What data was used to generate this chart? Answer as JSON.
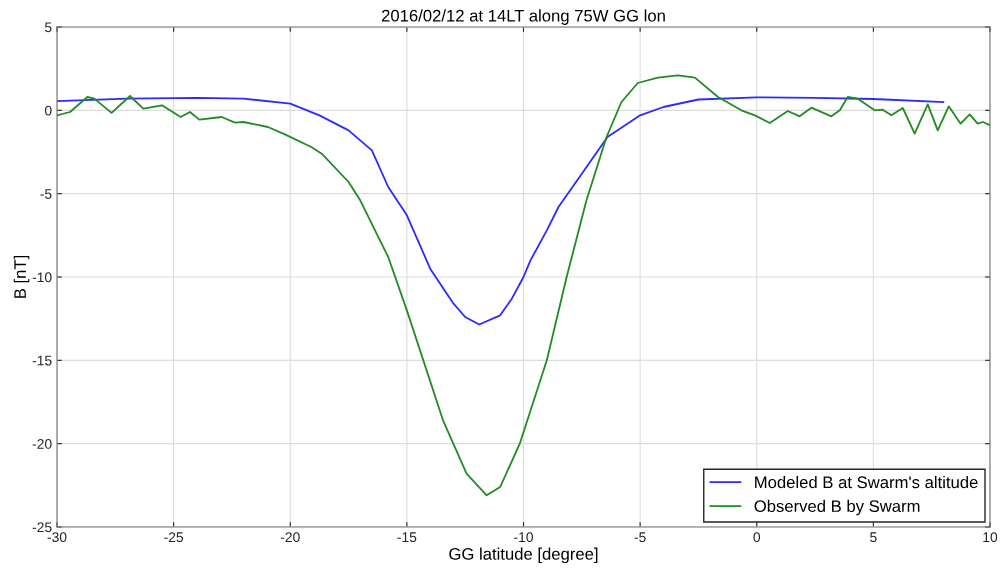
{
  "chart_data": {
    "type": "line",
    "title": "2016/02/12 at 14LT along 75W GG lon",
    "xlabel": "GG latitude [degree]",
    "ylabel": "B [nT]",
    "xlim": [
      -30,
      10
    ],
    "xticks": [
      -30,
      -25,
      -20,
      -15,
      -10,
      -5,
      0,
      5,
      10
    ],
    "ylim": [
      -25,
      5
    ],
    "yticks": [
      -25,
      -20,
      -15,
      -10,
      -5,
      0,
      5
    ],
    "grid": true,
    "legend": "bottom right",
    "line_style": "solid",
    "marker": "none",
    "series": [
      {
        "name": "Modeled B at Swarm's altitude",
        "color": "#2b2bff",
        "x": [
          -30,
          -27,
          -24,
          -22,
          -20,
          -18.75,
          -17.5,
          -16.5,
          -15.8,
          -15,
          -14,
          -13,
          -12.5,
          -11.9,
          -11,
          -10.5,
          -10,
          -9.7,
          -9,
          -8.5,
          -7.5,
          -6.4,
          -5,
          -4,
          -2.5,
          0,
          2.5,
          5,
          8
        ],
        "values": [
          0.55,
          0.7,
          0.75,
          0.7,
          0.4,
          -0.3,
          -1.2,
          -2.4,
          -4.6,
          -6.3,
          -9.5,
          -11.6,
          -12.4,
          -12.85,
          -12.3,
          -11.3,
          -10,
          -9,
          -7.2,
          -5.8,
          -3.8,
          -1.6,
          -0.3,
          0.2,
          0.65,
          0.78,
          0.75,
          0.68,
          0.5
        ]
      },
      {
        "name": "Observed B by Swarm",
        "color": "#228b22",
        "x": [
          -30,
          -29.44,
          -28.7,
          -28.4,
          -27.66,
          -26.87,
          -26.3,
          -25.5,
          -24.7,
          -24.3,
          -23.9,
          -22.94,
          -22.37,
          -22,
          -20.96,
          -20.23,
          -19.1,
          -18.65,
          -17.5,
          -17.0,
          -15.8,
          -15.0,
          -13.45,
          -12.44,
          -11.58,
          -11.0,
          -10.16,
          -9.0,
          -8.15,
          -7.3,
          -6.44,
          -5.8,
          -5.1,
          -4.24,
          -3.38,
          -2.65,
          -1.66,
          -0.66,
          -0.08,
          0.56,
          1.33,
          1.84,
          2.34,
          3.2,
          3.56,
          3.9,
          4.33,
          5.06,
          5.4,
          5.77,
          6.26,
          6.77,
          7.33,
          7.76,
          8.23,
          8.74,
          9.13,
          9.47,
          9.7,
          10
        ],
        "values": [
          -0.3,
          -0.1,
          0.8,
          0.7,
          -0.15,
          0.86,
          0.1,
          0.3,
          -0.4,
          -0.1,
          -0.56,
          -0.4,
          -0.74,
          -0.7,
          -1.0,
          -1.44,
          -2.2,
          -2.6,
          -4.3,
          -5.4,
          -8.8,
          -12.0,
          -18.6,
          -21.8,
          -23.1,
          -22.6,
          -20.0,
          -15.0,
          -10.0,
          -5.4,
          -1.6,
          0.5,
          1.64,
          1.96,
          2.1,
          1.96,
          0.8,
          0.0,
          -0.3,
          -0.76,
          -0.04,
          -0.36,
          0.16,
          -0.36,
          0.0,
          0.8,
          0.7,
          0.0,
          0.04,
          -0.3,
          0.14,
          -1.4,
          0.36,
          -1.2,
          0.24,
          -0.8,
          -0.24,
          -0.8,
          -0.7,
          -0.9
        ]
      }
    ]
  }
}
